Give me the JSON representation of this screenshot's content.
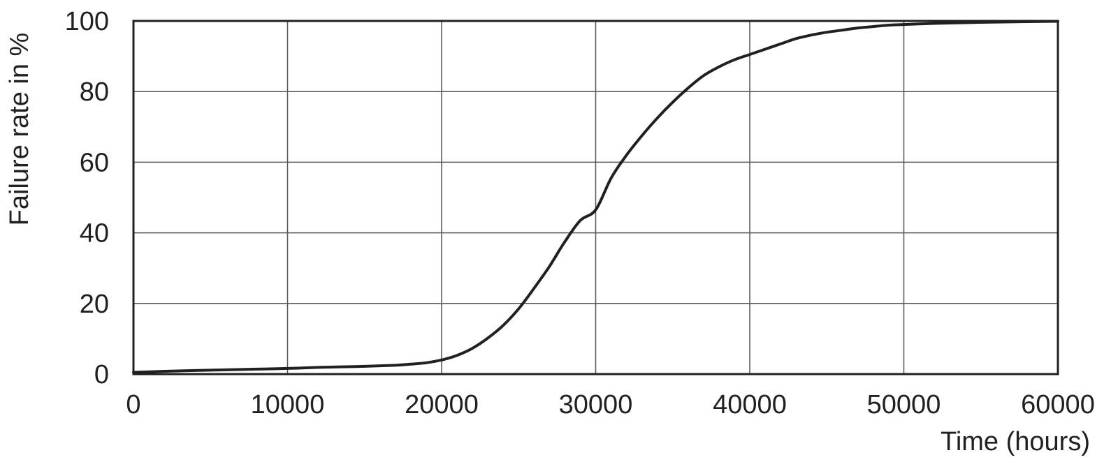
{
  "chart_data": {
    "type": "line",
    "xlabel": "Time (hours)",
    "ylabel": "Failure rate in %",
    "xlim": [
      0,
      60000
    ],
    "ylim": [
      0,
      100
    ],
    "xticks": [
      0,
      10000,
      20000,
      30000,
      40000,
      50000,
      60000
    ],
    "yticks": [
      0,
      20,
      40,
      60,
      80,
      100
    ],
    "xtick_labels": [
      "0",
      "10000",
      "20000",
      "30000",
      "40000",
      "50000",
      "60000"
    ],
    "ytick_labels": [
      "0",
      "20",
      "40",
      "60",
      "80",
      "100"
    ],
    "grid": true,
    "legend": "none",
    "series": [
      {
        "color": "#231f20",
        "x": [
          0,
          2000,
          5000,
          8000,
          10000,
          12000,
          15000,
          17000,
          18000,
          19000,
          20000,
          21000,
          22000,
          23000,
          24000,
          25000,
          26000,
          27000,
          28000,
          29000,
          30000,
          31000,
          32000,
          33000,
          34000,
          35000,
          36000,
          37000,
          38000,
          39000,
          40000,
          41000,
          42000,
          43000,
          44000,
          45000,
          46000,
          47000,
          48000,
          49000,
          50000,
          52000,
          55000,
          58000,
          60000
        ],
        "y": [
          0.5,
          0.8,
          1.1,
          1.4,
          1.6,
          1.9,
          2.2,
          2.5,
          2.8,
          3.2,
          4.0,
          5.3,
          7.3,
          10.2,
          13.8,
          18.5,
          24.3,
          30.5,
          37.5,
          43.5,
          46.5,
          55.5,
          62.0,
          67.5,
          72.5,
          77.0,
          81.0,
          84.5,
          87.0,
          89.0,
          90.5,
          92.0,
          93.5,
          95.0,
          96.0,
          96.8,
          97.4,
          98.0,
          98.4,
          98.8,
          99.0,
          99.3,
          99.6,
          99.8,
          99.9
        ]
      }
    ]
  }
}
